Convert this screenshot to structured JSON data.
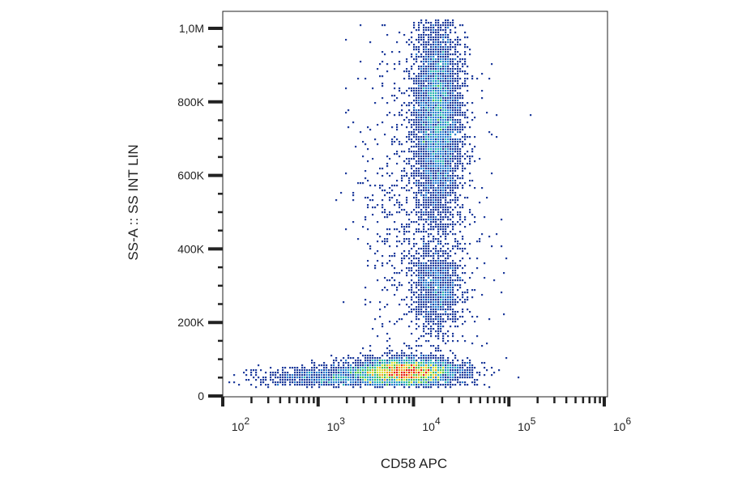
{
  "chart_data": {
    "type": "scatter",
    "subtype": "density-dot-plot",
    "title": "",
    "xlabel": "CD58 APC",
    "ylabel": "SS-A :: SS INT LIN",
    "x_scale": "log",
    "xlim": [
      100,
      1000000
    ],
    "x_ticks": [
      {
        "value": 100,
        "base": "10",
        "exp": "2"
      },
      {
        "value": 1000,
        "base": "10",
        "exp": "3"
      },
      {
        "value": 10000,
        "base": "10",
        "exp": "4"
      },
      {
        "value": 100000,
        "base": "10",
        "exp": "5"
      },
      {
        "value": 1000000,
        "base": "10",
        "exp": "6"
      }
    ],
    "y_scale": "linear",
    "ylim": [
      0,
      1020000
    ],
    "y_ticks": [
      {
        "value": 0,
        "label": "0"
      },
      {
        "value": 200000,
        "label": "200K"
      },
      {
        "value": 400000,
        "label": "400K"
      },
      {
        "value": 600000,
        "label": "600K"
      },
      {
        "value": 800000,
        "label": "800K"
      },
      {
        "value": 1000000,
        "label": "1,0M"
      }
    ],
    "grid": false,
    "legend": "none",
    "colormap": [
      "#1f3c9c",
      "#2a7fd0",
      "#27b5b0",
      "#4cc04a",
      "#d8e030",
      "#f0a020",
      "#e82010"
    ],
    "populations": [
      {
        "name_hint": "low side scatter",
        "x_center": 8000,
        "x_log_sd": 0.28,
        "y_center": 65000,
        "y_sd": 18000,
        "events": 5200
      },
      {
        "name_hint": "low side scatter tail",
        "x_center": 1200,
        "x_log_sd": 0.35,
        "y_center": 50000,
        "y_sd": 14000,
        "events": 900
      },
      {
        "name_hint": "high side scatter",
        "x_center": 18000,
        "x_log_sd": 0.12,
        "y_center": 760000,
        "y_sd": 140000,
        "events": 4200
      },
      {
        "name_hint": "intermediate side scatter",
        "x_center": 18000,
        "x_log_sd": 0.13,
        "y_center": 290000,
        "y_sd": 55000,
        "events": 1100
      },
      {
        "name_hint": "diffuse",
        "x_center": 12000,
        "x_log_sd": 0.3,
        "y_center": 550000,
        "y_sd": 260000,
        "events": 1300
      }
    ]
  }
}
